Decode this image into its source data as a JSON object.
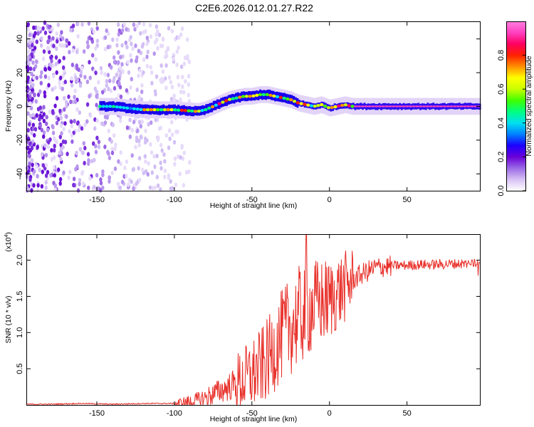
{
  "title": "C2E6.2026.012.01.27.R22",
  "chart_data": [
    {
      "type": "heatmap",
      "name": "spectrogram",
      "xlabel": "Height of straight line (km)",
      "ylabel": "Frequency (Hz)",
      "xlim": [
        -195,
        97
      ],
      "ylim": [
        -50,
        50
      ],
      "xticks": [
        -150,
        -100,
        -50,
        0,
        50
      ],
      "xtick_labels": [
        "-150",
        "-100",
        "-50",
        "0",
        "50"
      ],
      "yticks": [
        -40,
        -20,
        0,
        20,
        40
      ],
      "ytick_labels": [
        "-40",
        "-20",
        "0",
        "20",
        "40"
      ],
      "ridge": {
        "description": "dominant frequency ridge (Hz) vs height (km)",
        "height": [
          -148,
          -140,
          -130,
          -120,
          -100,
          -85,
          -80,
          -75,
          -70,
          -65,
          -60,
          -55,
          -50,
          -45,
          -40,
          -35,
          -30,
          -25,
          -20,
          -15,
          -10,
          -5,
          0,
          5,
          10,
          15,
          50,
          97
        ],
        "frequency": [
          0,
          0,
          -1,
          -2,
          -2,
          -3,
          -2,
          0,
          2,
          4,
          5,
          6,
          6,
          7,
          7,
          6,
          5,
          4,
          2,
          1,
          0,
          1,
          -1,
          0,
          1,
          0,
          0,
          0
        ]
      },
      "noise_region_km": [
        -195,
        -90
      ],
      "colorbar": {
        "label": "Normalized spectral amplitude",
        "range": [
          0,
          1
        ],
        "ticks": [
          0.0,
          0.2,
          0.4,
          0.6,
          0.8
        ],
        "tick_labels": [
          "0.0",
          "0.2",
          "0.4",
          "0.6",
          "0.8"
        ],
        "colors": [
          "#ffffff",
          "#d7c0f4",
          "#9b6ae6",
          "#6a00d8",
          "#1c00ff",
          "#0080ff",
          "#00e0f0",
          "#00ff80",
          "#40ff00",
          "#c8ff00",
          "#ffff00",
          "#ff9000",
          "#ff2000",
          "#ff0060",
          "#ff40c0",
          "#ff80e0"
        ]
      }
    },
    {
      "type": "line",
      "name": "snr",
      "xlabel": "Height of straight line (km)",
      "ylabel": "SNR (10 * v/v)",
      "scale_label": "(x10",
      "scale_exp": "4",
      "xlim": [
        -195,
        97
      ],
      "ylim": [
        0,
        2.35
      ],
      "xticks": [
        -150,
        -100,
        -50,
        0,
        50
      ],
      "xtick_labels": [
        "-150",
        "-100",
        "-50",
        "0",
        "50"
      ],
      "yticks": [
        0.5,
        1.0,
        1.5,
        2.0
      ],
      "ytick_labels": [
        "0.5",
        "1.0",
        "1.5",
        "2.0"
      ],
      "color": "#e8302a",
      "series": [
        {
          "name": "SNR",
          "x": [
            -195,
            -180,
            -160,
            -140,
            -120,
            -100,
            -95,
            -90,
            -85,
            -80,
            -75,
            -70,
            -65,
            -60,
            -55,
            -50,
            -45,
            -40,
            -35,
            -30,
            -25,
            -20,
            -15,
            -10,
            -5,
            0,
            5,
            10,
            15,
            20,
            25,
            30,
            40,
            50,
            60,
            70,
            80,
            90,
            97
          ],
          "y": [
            0.01,
            0.01,
            0.02,
            0.01,
            0.02,
            0.02,
            0.03,
            0.04,
            0.06,
            0.1,
            0.15,
            0.2,
            0.25,
            0.3,
            0.35,
            0.42,
            0.5,
            0.62,
            0.8,
            0.98,
            1.1,
            1.2,
            1.3,
            1.38,
            1.42,
            1.45,
            1.55,
            1.63,
            1.72,
            1.8,
            1.85,
            1.9,
            1.92,
            1.93,
            1.94,
            1.94,
            1.95,
            1.95,
            1.96
          ]
        }
      ],
      "peak": {
        "x": -15,
        "y": 2.35
      }
    }
  ]
}
